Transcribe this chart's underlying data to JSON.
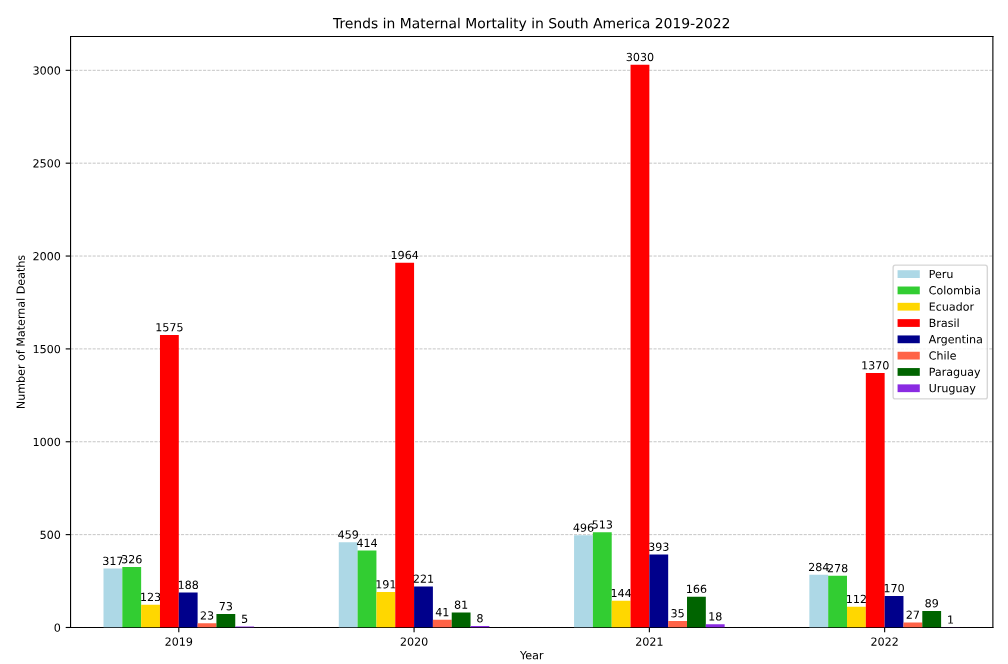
{
  "chart_data": {
    "type": "bar",
    "title": "Trends in Maternal Mortality in South America 2019-2022",
    "xlabel": "Year",
    "ylabel": "Number of Maternal Deaths",
    "categories": [
      "2019",
      "2020",
      "2021",
      "2022"
    ],
    "series": [
      {
        "name": "Peru",
        "color": "#add8e6",
        "values": [
          317,
          459,
          496,
          284
        ]
      },
      {
        "name": "Colombia",
        "color": "#32cd32",
        "values": [
          326,
          414,
          513,
          278
        ]
      },
      {
        "name": "Ecuador",
        "color": "#ffd700",
        "values": [
          123,
          191,
          144,
          112
        ]
      },
      {
        "name": "Brasil",
        "color": "#ff0000",
        "values": [
          1575,
          1964,
          3030,
          1370
        ]
      },
      {
        "name": "Argentina",
        "color": "#00008b",
        "values": [
          188,
          221,
          393,
          170
        ]
      },
      {
        "name": "Chile",
        "color": "#ff6347",
        "values": [
          23,
          41,
          35,
          27
        ]
      },
      {
        "name": "Paraguay",
        "color": "#006400",
        "values": [
          73,
          81,
          166,
          89
        ]
      },
      {
        "name": "Uruguay",
        "color": "#8a2be2",
        "values": [
          5,
          8,
          18,
          1
        ]
      }
    ],
    "ylim": [
      0,
      3182
    ],
    "yticks": [
      0,
      500,
      1000,
      1500,
      2000,
      2500,
      3000
    ],
    "grid": "y",
    "legend": "center right",
    "data_labels": true
  }
}
